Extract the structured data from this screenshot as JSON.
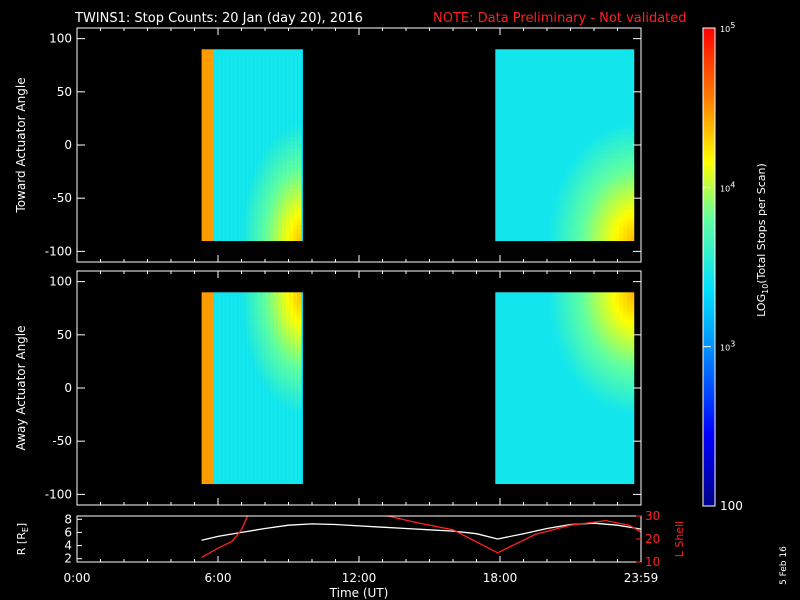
{
  "title": {
    "main": "TWINS1: Stop Counts: 20 Jan (day  20), 2016",
    "note": "NOTE: Data Preliminary - Not validated",
    "note_color": "#ff2020"
  },
  "date_stamp": "5 Feb 16",
  "chart_data": [
    {
      "type": "heatmap",
      "panel": "toward",
      "ylabel": "Toward Actuator Angle",
      "ylim": [
        -110,
        110
      ],
      "yticks": [
        "-100",
        "-50",
        "0",
        "50",
        "100"
      ],
      "xlim": [
        0,
        24
      ],
      "x_range_hours": [
        0,
        24
      ],
      "data_blocks": [
        {
          "x_start": 5.3,
          "x_end": 9.6,
          "angle_range": [
            -90,
            90
          ]
        },
        {
          "x_start": 17.8,
          "x_end": 23.7,
          "angle_range": [
            -90,
            90
          ]
        }
      ]
    },
    {
      "type": "heatmap",
      "panel": "away",
      "ylabel": "Away Actuator Angle",
      "ylim": [
        -110,
        110
      ],
      "yticks": [
        "-100",
        "-50",
        "0",
        "50",
        "100"
      ],
      "xlim": [
        0,
        24
      ],
      "data_blocks": [
        {
          "x_start": 5.3,
          "x_end": 9.6,
          "angle_range": [
            -90,
            90
          ]
        },
        {
          "x_start": 17.8,
          "x_end": 23.7,
          "angle_range": [
            -90,
            90
          ]
        }
      ]
    },
    {
      "type": "line",
      "panel": "orbit",
      "ylabel": "R [R",
      "ylabel_sub": "E",
      "ylabel_close": "]",
      "ylim": [
        1.5,
        8.5
      ],
      "yticks": [
        "2",
        "4",
        "6",
        "8"
      ],
      "right_ylabel": "L Shell",
      "right_ylim": [
        10,
        30
      ],
      "right_yticks": [
        "10",
        "20",
        "30"
      ],
      "xlabel": "Time (UT)",
      "xticks": [
        "0:00",
        "6:00",
        "12:00",
        "18:00",
        "23:59"
      ],
      "xtick_values": [
        0,
        6,
        12,
        18,
        24
      ],
      "series": [
        {
          "color": "#ffffff",
          "x": [
            5.3,
            6.0,
            7.0,
            8.0,
            9.0,
            10.0,
            11.0,
            12.0,
            13.0,
            14.0,
            15.0,
            16.0,
            17.0,
            17.9,
            19.0,
            20.0,
            21.0,
            22.0,
            23.0,
            24.0
          ],
          "y": [
            4.8,
            5.4,
            6.0,
            6.6,
            7.1,
            7.3,
            7.2,
            7.0,
            6.8,
            6.6,
            6.4,
            6.2,
            5.8,
            5.0,
            5.8,
            6.6,
            7.2,
            7.4,
            7.1,
            6.5
          ]
        },
        {
          "color": "#ff2020",
          "axis": "right",
          "x": [
            5.3,
            6.0,
            6.6,
            7.0,
            7.3,
            12.8,
            14.5,
            16.0,
            17.9,
            19.5,
            21.0,
            22.5,
            23.5,
            24.0
          ],
          "y": [
            12,
            16,
            19,
            24,
            31,
            31,
            27,
            24,
            14,
            22,
            26,
            28,
            26,
            23
          ]
        }
      ]
    }
  ],
  "colorbar": {
    "label": "LOG",
    "label_sub": "10",
    "label_rest": "(Total Stops per Scan)",
    "ticks": [
      {
        "base": "10",
        "exp": "5",
        "value": 100000
      },
      {
        "base": "10",
        "exp": "4",
        "value": 10000
      },
      {
        "base": "10",
        "exp": "3",
        "value": 1000
      },
      {
        "plain": "100",
        "value": 100
      }
    ],
    "range": [
      100,
      100000
    ],
    "colors": [
      "#000088",
      "#0000ff",
      "#0080ff",
      "#00ffff",
      "#80ffa0",
      "#ffff00",
      "#ff8000",
      "#ff0000"
    ]
  }
}
